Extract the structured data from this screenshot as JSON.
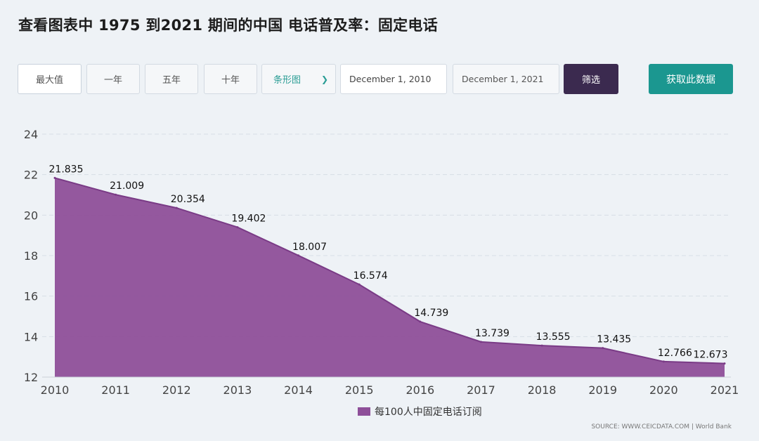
{
  "page": {
    "title": "查看图表中 1975 到2021 期间的中国 电话普及率：固定电话"
  },
  "toolbar": {
    "max_label": "最大值",
    "one_year_label": "一年",
    "five_year_label": "五年",
    "ten_year_label": "十年",
    "chart_type_label": "条形图",
    "date_from": "December 1, 2010",
    "date_to": "December 1, 2021",
    "filter_label": "筛选",
    "get_data_label": "获取此数据"
  },
  "source_text": "SOURCE: WWW.CEICDATA.COM | World Bank",
  "colors": {
    "area_fill": "#8e4f99",
    "area_line": "#7a3b86",
    "filter_button": "#3b2a4f",
    "get_data_button": "#1b9790",
    "accent": "#2a9d95"
  },
  "icons": {
    "dropdown": "chevron-down-icon"
  },
  "chart_data": {
    "type": "area",
    "title": "",
    "xlabel": "",
    "ylabel": "",
    "x": [
      "2010",
      "2011",
      "2012",
      "2013",
      "2014",
      "2015",
      "2016",
      "2017",
      "2018",
      "2019",
      "2020",
      "2021"
    ],
    "series": [
      {
        "name": "每100人中固定电话订阅",
        "values": [
          21.835,
          21.009,
          20.354,
          19.402,
          18.007,
          16.574,
          14.739,
          13.739,
          13.555,
          13.435,
          12.766,
          12.673
        ]
      }
    ],
    "ylim": [
      12,
      24
    ],
    "yticks": [
      12,
      14,
      16,
      18,
      20,
      22,
      24
    ],
    "grid": true,
    "legend": "bottom-center"
  }
}
